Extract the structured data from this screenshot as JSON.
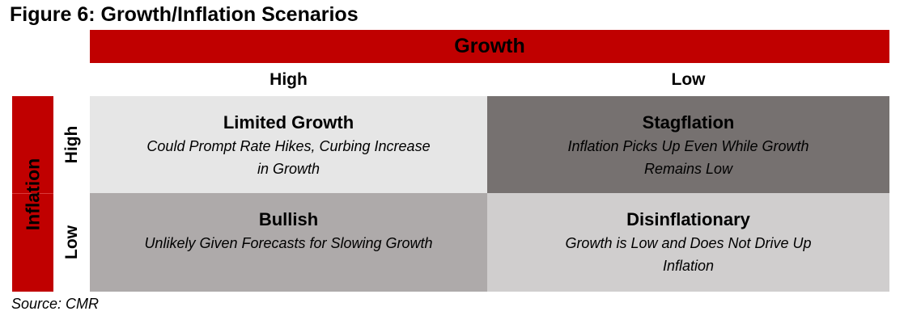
{
  "title": "Figure 6: Growth/Inflation Scenarios",
  "axes": {
    "growth_label": "Growth",
    "inflation_label": "Inflation",
    "growth_high": "High",
    "growth_low": "Low",
    "inflation_high": "High",
    "inflation_low": "Low"
  },
  "colors": {
    "accent": "#c00000",
    "cell_high_high": "#e6e6e6",
    "cell_high_low": "#767170",
    "cell_low_high": "#aeaaaa",
    "cell_low_low": "#d0cece"
  },
  "cells": {
    "high_infl_high_growth": {
      "head": "Limited Growth",
      "desc": "Could Prompt Rate Hikes, Curbing Increase in Growth"
    },
    "high_infl_low_growth": {
      "head": "Stagflation",
      "desc": "Inflation Picks Up Even While Growth Remains Low"
    },
    "low_infl_high_growth": {
      "head": "Bullish",
      "desc": "Unlikely Given Forecasts for Slowing Growth"
    },
    "low_infl_low_growth": {
      "head": "Disinflationary",
      "desc": "Growth is Low and Does Not Drive Up Inflation"
    }
  },
  "source": "Source: CMR"
}
